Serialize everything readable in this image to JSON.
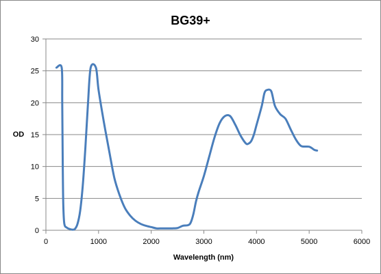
{
  "chart_data": {
    "type": "line",
    "title": "BG39+",
    "xlabel": "Wavelength (nm)",
    "ylabel": "OD",
    "xlim": [
      0,
      6000
    ],
    "ylim": [
      0,
      30
    ],
    "x_ticks": [
      "0",
      "1000",
      "2000",
      "3000",
      "4000",
      "5000",
      "6000"
    ],
    "y_ticks": [
      "0",
      "5",
      "10",
      "15",
      "20",
      "25",
      "30"
    ],
    "grid": "horizontal",
    "legend": "none",
    "series": [
      {
        "color": "#4a7ebb",
        "points": [
          [
            200,
            25.5
          ],
          [
            300,
            25.5
          ],
          [
            310,
            20
          ],
          [
            320,
            10
          ],
          [
            330,
            4
          ],
          [
            350,
            1
          ],
          [
            400,
            0.4
          ],
          [
            450,
            0.2
          ],
          [
            500,
            0.1
          ],
          [
            550,
            0.2
          ],
          [
            600,
            1
          ],
          [
            650,
            3
          ],
          [
            700,
            7
          ],
          [
            750,
            13
          ],
          [
            800,
            20
          ],
          [
            850,
            25.5
          ],
          [
            950,
            25.5
          ],
          [
            1000,
            22
          ],
          [
            1100,
            17
          ],
          [
            1200,
            12.5
          ],
          [
            1300,
            8.2
          ],
          [
            1400,
            5.5
          ],
          [
            1500,
            3.5
          ],
          [
            1600,
            2.3
          ],
          [
            1700,
            1.5
          ],
          [
            1800,
            1.0
          ],
          [
            1900,
            0.7
          ],
          [
            2000,
            0.5
          ],
          [
            2100,
            0.3
          ],
          [
            2200,
            0.3
          ],
          [
            2300,
            0.3
          ],
          [
            2400,
            0.3
          ],
          [
            2500,
            0.35
          ],
          [
            2600,
            0.7
          ],
          [
            2700,
            0.8
          ],
          [
            2750,
            1.2
          ],
          [
            2800,
            2.5
          ],
          [
            2850,
            4.5
          ],
          [
            2900,
            6
          ],
          [
            3000,
            8.5
          ],
          [
            3100,
            11.5
          ],
          [
            3200,
            14.5
          ],
          [
            3300,
            16.8
          ],
          [
            3400,
            17.9
          ],
          [
            3500,
            17.9
          ],
          [
            3600,
            16.5
          ],
          [
            3700,
            14.8
          ],
          [
            3800,
            13.6
          ],
          [
            3850,
            13.6
          ],
          [
            3900,
            14
          ],
          [
            3950,
            15
          ],
          [
            4000,
            16.5
          ],
          [
            4100,
            19.5
          ],
          [
            4150,
            21.5
          ],
          [
            4200,
            22
          ],
          [
            4280,
            21.8
          ],
          [
            4350,
            19.5
          ],
          [
            4450,
            18.2
          ],
          [
            4550,
            17.5
          ],
          [
            4650,
            15.8
          ],
          [
            4750,
            14.2
          ],
          [
            4850,
            13.2
          ],
          [
            5000,
            13.1
          ],
          [
            5100,
            12.6
          ],
          [
            5150,
            12.5
          ]
        ]
      }
    ]
  }
}
